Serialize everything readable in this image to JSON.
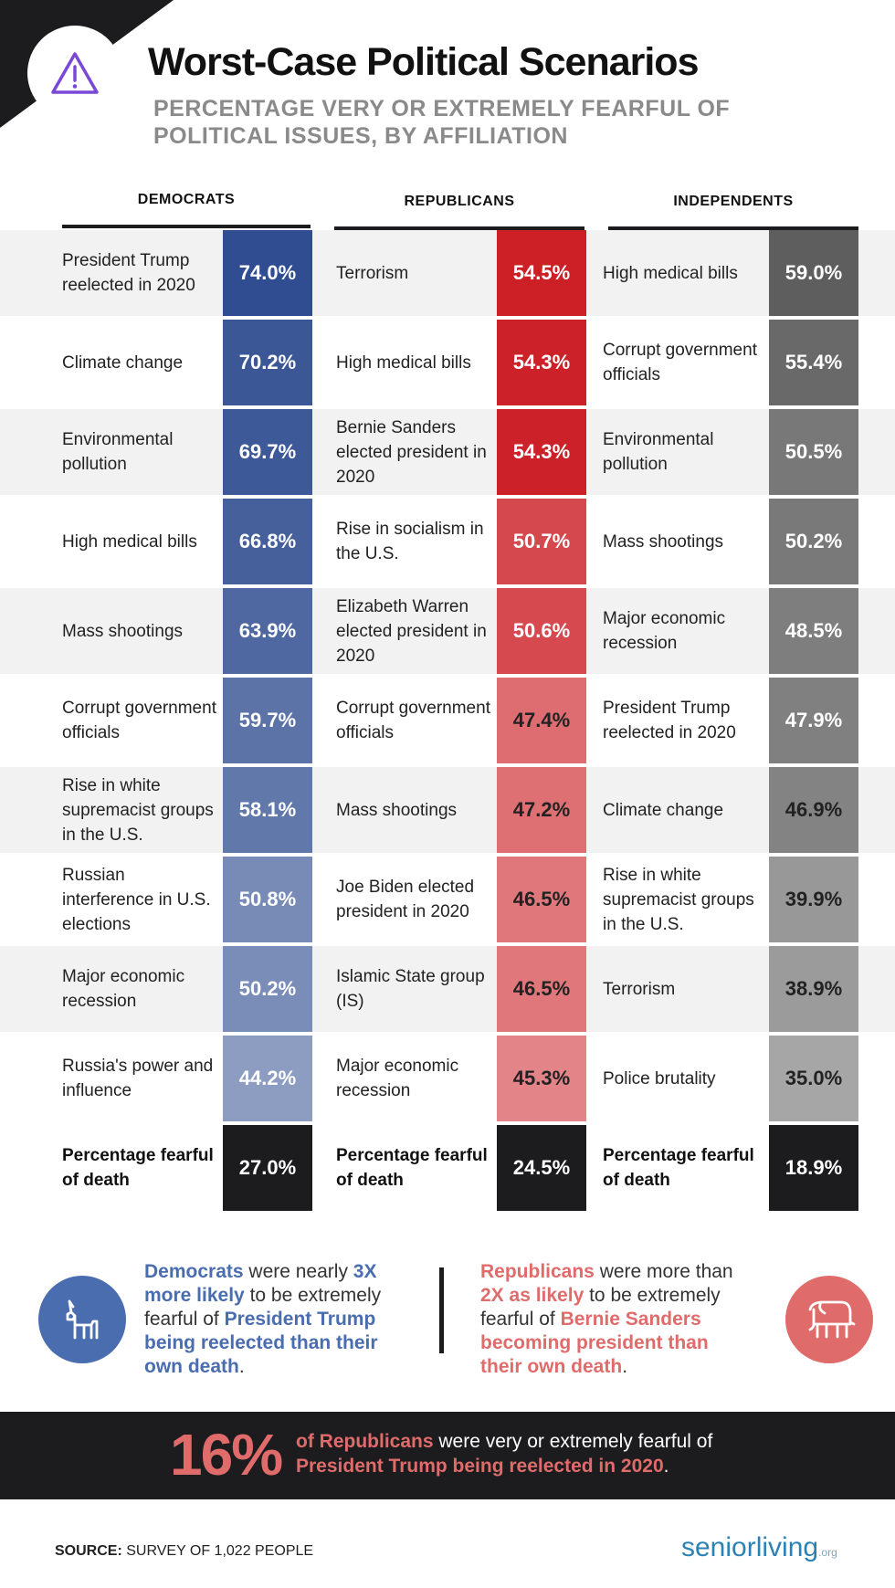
{
  "header": {
    "title": "Worst-Case Political Scenarios",
    "subtitle": "PERCENTAGE VERY OR EXTREMELY FEARFUL OF POLITICAL ISSUES, BY AFFILIATION"
  },
  "chart_data": {
    "type": "table",
    "title": "Worst-Case Political Scenarios",
    "subtitle": "PERCENTAGE VERY OR EXTREMELY FEARFUL OF POLITICAL ISSUES, BY AFFILIATION",
    "unit": "%",
    "columns": [
      {
        "name": "DEMOCRATS",
        "color": "#2f4d90",
        "rows": [
          {
            "label": "President Trump reelected in 2020",
            "value": 74.0,
            "display": "74.0%"
          },
          {
            "label": "Climate change",
            "value": 70.2,
            "display": "70.2%"
          },
          {
            "label": "Environmental pollution",
            "value": 69.7,
            "display": "69.7%"
          },
          {
            "label": "High medical bills",
            "value": 66.8,
            "display": "66.8%"
          },
          {
            "label": "Mass shootings",
            "value": 63.9,
            "display": "63.9%"
          },
          {
            "label": "Corrupt government officials",
            "value": 59.7,
            "display": "59.7%"
          },
          {
            "label": "Rise in white supremacist groups in the U.S.",
            "value": 58.1,
            "display": "58.1%"
          },
          {
            "label": "Russian interference in U.S. elections",
            "value": 50.8,
            "display": "50.8%"
          },
          {
            "label": "Major economic recession",
            "value": 50.2,
            "display": "50.2%"
          },
          {
            "label": "Russia's power and influence",
            "value": 44.2,
            "display": "44.2%"
          }
        ],
        "death": {
          "label": "Percentage fearful of death",
          "value": 27.0,
          "display": "27.0%"
        }
      },
      {
        "name": "REPUBLICANS",
        "color": "#cc1f26",
        "rows": [
          {
            "label": "Terrorism",
            "value": 54.5,
            "display": "54.5%"
          },
          {
            "label": "High medical bills",
            "value": 54.3,
            "display": "54.3%"
          },
          {
            "label": "Bernie Sanders elected president in 2020",
            "value": 54.3,
            "display": "54.3%"
          },
          {
            "label": "Rise in socialism in the U.S.",
            "value": 50.7,
            "display": "50.7%"
          },
          {
            "label": "Elizabeth Warren elected president in 2020",
            "value": 50.6,
            "display": "50.6%"
          },
          {
            "label": "Corrupt government officials",
            "value": 47.4,
            "display": "47.4%"
          },
          {
            "label": "Mass shootings",
            "value": 47.2,
            "display": "47.2%"
          },
          {
            "label": "Joe Biden elected president in 2020",
            "value": 46.5,
            "display": "46.5%"
          },
          {
            "label": "Islamic State group (IS)",
            "value": 46.5,
            "display": "46.5%"
          },
          {
            "label": "Major economic recession",
            "value": 45.3,
            "display": "45.3%"
          }
        ],
        "death": {
          "label": "Percentage fearful of death",
          "value": 24.5,
          "display": "24.5%"
        }
      },
      {
        "name": "INDEPENDENTS",
        "color": "#5e5e5e",
        "rows": [
          {
            "label": "High medical bills",
            "value": 59.0,
            "display": "59.0%"
          },
          {
            "label": "Corrupt government officials",
            "value": 55.4,
            "display": "55.4%"
          },
          {
            "label": "Environmental pollution",
            "value": 50.5,
            "display": "50.5%"
          },
          {
            "label": "Mass shootings",
            "value": 50.2,
            "display": "50.2%"
          },
          {
            "label": "Major economic recession",
            "value": 48.5,
            "display": "48.5%"
          },
          {
            "label": "President Trump reelected in 2020",
            "value": 47.9,
            "display": "47.9%"
          },
          {
            "label": "Climate change",
            "value": 46.9,
            "display": "46.9%"
          },
          {
            "label": "Rise in white supremacist groups in the U.S.",
            "value": 39.9,
            "display": "39.9%"
          },
          {
            "label": "Terrorism",
            "value": 38.9,
            "display": "38.9%"
          },
          {
            "label": "Police brutality",
            "value": 35.0,
            "display": "35.0%"
          }
        ],
        "death": {
          "label": "Percentage fearful of death",
          "value": 18.9,
          "display": "18.9%"
        }
      }
    ]
  },
  "callouts": {
    "democrats": {
      "icon": "donkey-icon",
      "color": "#4a6db0",
      "parts": [
        {
          "text": "Democrats",
          "bold": true
        },
        {
          "text": " were nearly ",
          "bold": false
        },
        {
          "text": "3X more likely",
          "bold": true
        },
        {
          "text": " to be extremely fearful of ",
          "bold": false
        },
        {
          "text": "President Trump being reelected than their own death",
          "bold": true
        },
        {
          "text": ".",
          "bold": false
        }
      ]
    },
    "republicans": {
      "icon": "elephant-icon",
      "color": "#e06b6b",
      "parts": [
        {
          "text": "Republicans",
          "bold": true
        },
        {
          "text": " were more than ",
          "bold": false
        },
        {
          "text": "2X as likely",
          "bold": true
        },
        {
          "text": " to be extremely fearful of ",
          "bold": false
        },
        {
          "text": "Bernie Sanders becoming president than their own death",
          "bold": true
        },
        {
          "text": ".",
          "bold": false
        }
      ]
    }
  },
  "banner": {
    "big_number": "16%",
    "parts": [
      {
        "text": "of Republicans",
        "bold": true
      },
      {
        "text": " were very or extremely fearful of ",
        "bold": false
      },
      {
        "text": "President Trump being reelected in 2020",
        "bold": true
      },
      {
        "text": ".",
        "bold": false
      }
    ]
  },
  "footer": {
    "source_label": "SOURCE:",
    "source_text": " SURVEY OF 1,022 PEOPLE",
    "brand_main": "seniorliving",
    "brand_suffix": ".org"
  }
}
